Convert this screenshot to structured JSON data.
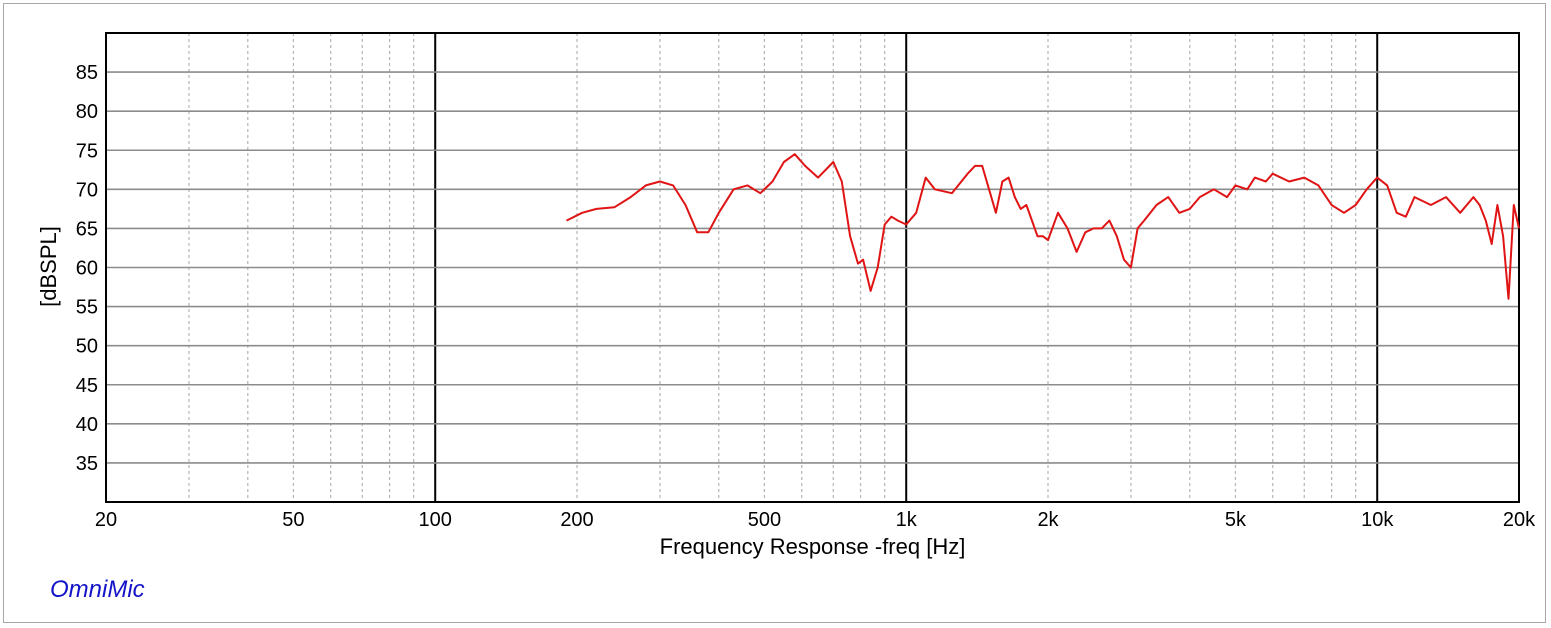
{
  "brand": "OmniMic",
  "chart_data": {
    "type": "line",
    "title": "",
    "xlabel": "Frequency Response -freq [Hz]",
    "ylabel": "[dBSPL]",
    "x_scale": "log",
    "xlim": [
      20,
      20000
    ],
    "ylim": [
      30,
      90
    ],
    "x_ticks": [
      {
        "value": 20,
        "label": "20"
      },
      {
        "value": 50,
        "label": "50"
      },
      {
        "value": 100,
        "label": "100"
      },
      {
        "value": 200,
        "label": "200"
      },
      {
        "value": 500,
        "label": "500"
      },
      {
        "value": 1000,
        "label": "1k"
      },
      {
        "value": 2000,
        "label": "2k"
      },
      {
        "value": 5000,
        "label": "5k"
      },
      {
        "value": 10000,
        "label": "10k"
      },
      {
        "value": 20000,
        "label": "20k"
      }
    ],
    "y_ticks": [
      35,
      40,
      45,
      50,
      55,
      60,
      65,
      70,
      75,
      80,
      85
    ],
    "grid": true,
    "colors": {
      "line": "#e01414",
      "grid": "#b4b4b4",
      "axis": "#000000"
    },
    "series": [
      {
        "name": "",
        "x": [
          190,
          205,
          220,
          240,
          260,
          280,
          300,
          320,
          340,
          360,
          380,
          400,
          430,
          460,
          490,
          520,
          550,
          580,
          610,
          650,
          700,
          730,
          760,
          790,
          810,
          840,
          870,
          900,
          930,
          960,
          1000,
          1050,
          1100,
          1150,
          1250,
          1350,
          1400,
          1450,
          1550,
          1600,
          1650,
          1700,
          1750,
          1800,
          1900,
          1950,
          2000,
          2100,
          2200,
          2300,
          2400,
          2500,
          2600,
          2700,
          2800,
          2900,
          3000,
          3100,
          3200,
          3400,
          3600,
          3800,
          4000,
          4200,
          4500,
          4800,
          5000,
          5300,
          5500,
          5800,
          6000,
          6500,
          7000,
          7500,
          8000,
          8500,
          9000,
          9500,
          10000,
          10500,
          11000,
          11500,
          12000,
          13000,
          14000,
          15000,
          16000,
          16500,
          17000,
          17500,
          18000,
          18500,
          19000,
          19500,
          20000
        ],
        "values": [
          66,
          67,
          67.5,
          67.7,
          69,
          70.5,
          71,
          70.5,
          68,
          64.5,
          64.5,
          67,
          70,
          70.5,
          69.5,
          71,
          73.5,
          74.5,
          73,
          71.5,
          73.5,
          71,
          64,
          60.5,
          61,
          57,
          60,
          65.5,
          66.5,
          66,
          65.5,
          67,
          71.5,
          70,
          69.5,
          72,
          73,
          73,
          67,
          71,
          71.5,
          69,
          67.5,
          68,
          64,
          64,
          63.5,
          67,
          65,
          62,
          64.5,
          65,
          65,
          66,
          64,
          61,
          60,
          65,
          66,
          68,
          69,
          67,
          67.5,
          69,
          70,
          69,
          70.5,
          70,
          71.5,
          71,
          72,
          71,
          71.5,
          70.5,
          68,
          67,
          68,
          70,
          71.5,
          70.5,
          67,
          66.5,
          69,
          68,
          69,
          67,
          69,
          68,
          66,
          63,
          68,
          64,
          56,
          68,
          65
        ]
      }
    ]
  }
}
